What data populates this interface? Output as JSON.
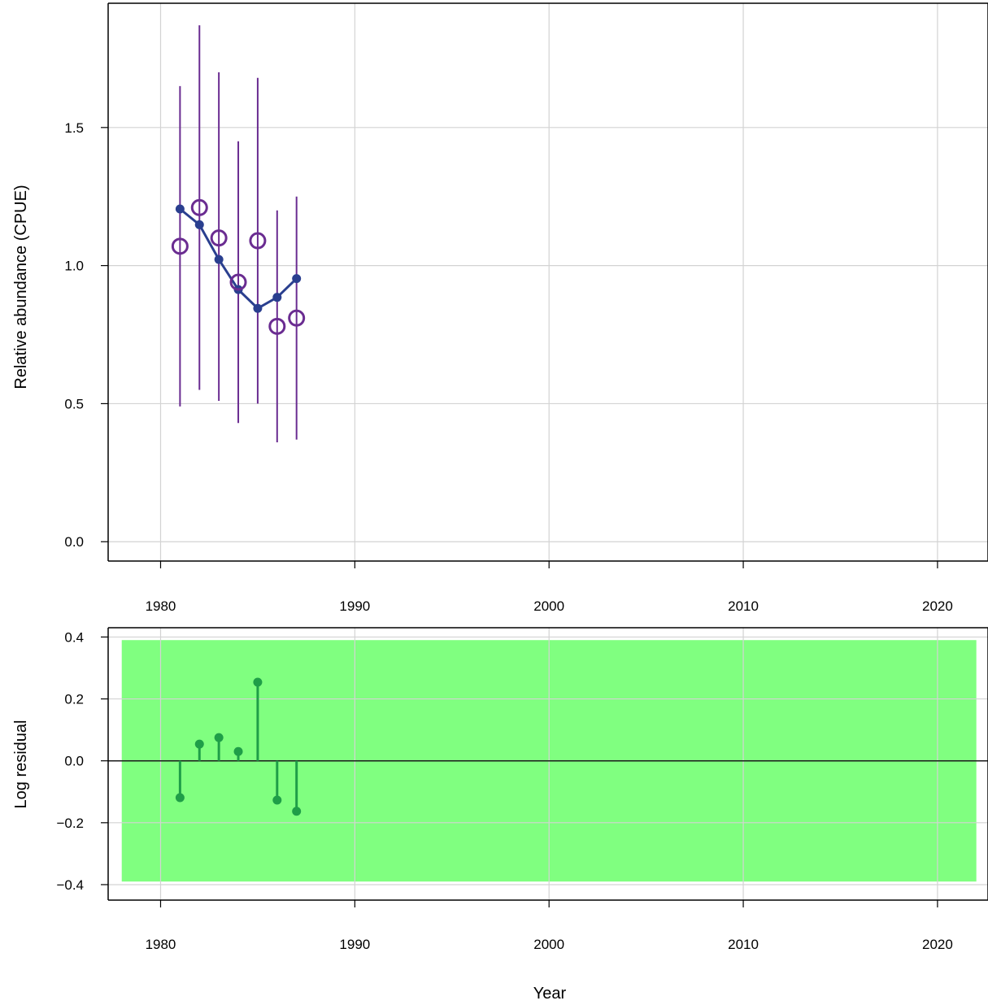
{
  "chart_data": [
    {
      "type": "line",
      "panel": "fit",
      "ylabel": "Relative abundance (CPUE)",
      "xlim": [
        1977.3,
        2022.6
      ],
      "ylim": [
        -0.07,
        1.95
      ],
      "xticks": [
        1980,
        1990,
        2000,
        2010,
        2020
      ],
      "yticks": [
        0.0,
        0.5,
        1.0,
        1.5
      ],
      "ytick_labels": [
        "0.0",
        "0.5",
        "1.0",
        "1.5"
      ],
      "grid": true,
      "series": [
        {
          "role": "observed",
          "marker": "open-circle",
          "color": "#6a2c91",
          "x": [
            1981,
            1982,
            1983,
            1984,
            1985,
            1986,
            1987
          ],
          "values": [
            1.07,
            1.21,
            1.1,
            0.94,
            1.09,
            0.78,
            0.81
          ],
          "lower": [
            0.49,
            0.55,
            0.51,
            0.43,
            0.5,
            0.36,
            0.37
          ],
          "upper": [
            1.65,
            1.87,
            1.7,
            1.45,
            1.68,
            1.2,
            1.25
          ]
        },
        {
          "role": "fitted",
          "marker": "filled-circle-line",
          "color": "#2a3f8f",
          "x": [
            1981,
            1982,
            1983,
            1984,
            1985,
            1986,
            1987
          ],
          "values": [
            1.205,
            1.148,
            1.022,
            0.913,
            0.845,
            0.885,
            0.953
          ]
        }
      ]
    },
    {
      "type": "lollipop",
      "panel": "residuals",
      "ylabel": "Log residual",
      "xlabel": "Year",
      "xlim": [
        1977.3,
        2022.6
      ],
      "ylim": [
        -0.45,
        0.43
      ],
      "xticks": [
        1980,
        1990,
        2000,
        2010,
        2020
      ],
      "yticks": [
        -0.4,
        -0.2,
        0.0,
        0.2,
        0.4
      ],
      "ytick_labels": [
        "−0.4",
        "−0.2",
        "0.0",
        "0.2",
        "0.4"
      ],
      "grid": true,
      "band": {
        "x": [
          1978,
          2022
        ],
        "y": [
          -0.39,
          0.39
        ],
        "color": "#80ff80"
      },
      "series": [
        {
          "color": "#1f9e48",
          "x": [
            1981,
            1982,
            1983,
            1984,
            1985,
            1986,
            1987
          ],
          "values": [
            -0.119,
            0.054,
            0.075,
            0.03,
            0.254,
            -0.127,
            -0.163
          ]
        }
      ]
    }
  ]
}
